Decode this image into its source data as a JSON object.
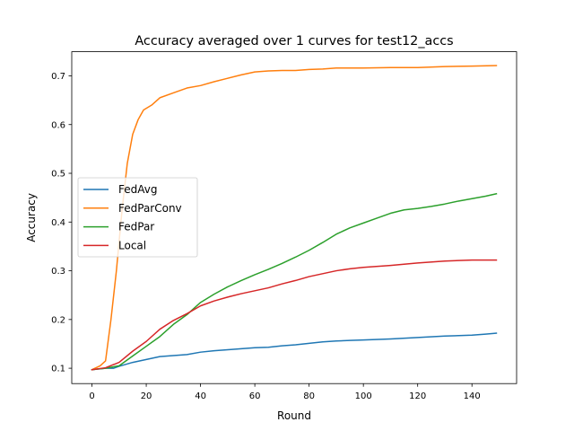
{
  "chart_data": {
    "type": "line",
    "title": "Accuracy averaged over 1 curves for test12_accs",
    "xlabel": "Round",
    "ylabel": "Accuracy",
    "xlim": [
      -7.45,
      156.45
    ],
    "ylim": [
      0.0685,
      0.7495
    ],
    "xticks": [
      0,
      20,
      40,
      60,
      80,
      100,
      120,
      140
    ],
    "yticks": [
      0.1,
      0.2,
      0.3,
      0.4,
      0.5,
      0.6,
      0.7
    ],
    "ytick_labels": [
      "0.1",
      "0.2",
      "0.3",
      "0.4",
      "0.5",
      "0.6",
      "0.7"
    ],
    "grid": false,
    "legend_position": "center-left",
    "series": [
      {
        "name": "FedAvg",
        "color": "#1f77b4",
        "x": [
          0,
          5,
          8,
          10,
          15,
          20,
          25,
          30,
          35,
          40,
          45,
          50,
          55,
          60,
          65,
          70,
          75,
          80,
          85,
          90,
          95,
          100,
          110,
          120,
          130,
          140,
          145,
          149
        ],
        "y": [
          0.097,
          0.1,
          0.1,
          0.104,
          0.112,
          0.118,
          0.124,
          0.126,
          0.128,
          0.133,
          0.136,
          0.138,
          0.14,
          0.142,
          0.143,
          0.146,
          0.148,
          0.151,
          0.154,
          0.156,
          0.157,
          0.158,
          0.16,
          0.163,
          0.166,
          0.168,
          0.17,
          0.172
        ]
      },
      {
        "name": "FedParConv",
        "color": "#ff7f0e",
        "x": [
          0,
          3,
          5,
          7,
          9,
          11,
          13,
          15,
          17,
          19,
          22,
          25,
          30,
          35,
          40,
          45,
          50,
          55,
          60,
          65,
          70,
          75,
          80,
          85,
          90,
          100,
          110,
          120,
          130,
          140,
          149
        ],
        "y": [
          0.097,
          0.105,
          0.115,
          0.2,
          0.3,
          0.42,
          0.52,
          0.58,
          0.61,
          0.63,
          0.64,
          0.655,
          0.665,
          0.675,
          0.68,
          0.688,
          0.695,
          0.702,
          0.708,
          0.71,
          0.711,
          0.711,
          0.713,
          0.714,
          0.716,
          0.716,
          0.717,
          0.717,
          0.719,
          0.72,
          0.721
        ]
      },
      {
        "name": "FedPar",
        "color": "#2ca02c",
        "x": [
          0,
          5,
          10,
          15,
          20,
          25,
          30,
          35,
          40,
          45,
          50,
          55,
          60,
          65,
          70,
          75,
          80,
          85,
          90,
          95,
          100,
          105,
          110,
          115,
          120,
          125,
          130,
          135,
          140,
          145,
          149
        ],
        "y": [
          0.097,
          0.1,
          0.105,
          0.125,
          0.145,
          0.165,
          0.19,
          0.21,
          0.235,
          0.252,
          0.267,
          0.28,
          0.292,
          0.303,
          0.315,
          0.328,
          0.342,
          0.358,
          0.375,
          0.388,
          0.398,
          0.408,
          0.418,
          0.425,
          0.428,
          0.432,
          0.437,
          0.443,
          0.448,
          0.453,
          0.458
        ]
      },
      {
        "name": "Local",
        "color": "#d62728",
        "x": [
          0,
          5,
          10,
          15,
          20,
          25,
          30,
          35,
          40,
          45,
          50,
          55,
          60,
          65,
          70,
          75,
          80,
          85,
          90,
          95,
          100,
          110,
          120,
          130,
          140,
          149
        ],
        "y": [
          0.097,
          0.101,
          0.112,
          0.135,
          0.155,
          0.18,
          0.198,
          0.212,
          0.228,
          0.238,
          0.246,
          0.253,
          0.259,
          0.265,
          0.273,
          0.28,
          0.288,
          0.294,
          0.3,
          0.304,
          0.307,
          0.311,
          0.316,
          0.32,
          0.322,
          0.322
        ]
      }
    ]
  }
}
